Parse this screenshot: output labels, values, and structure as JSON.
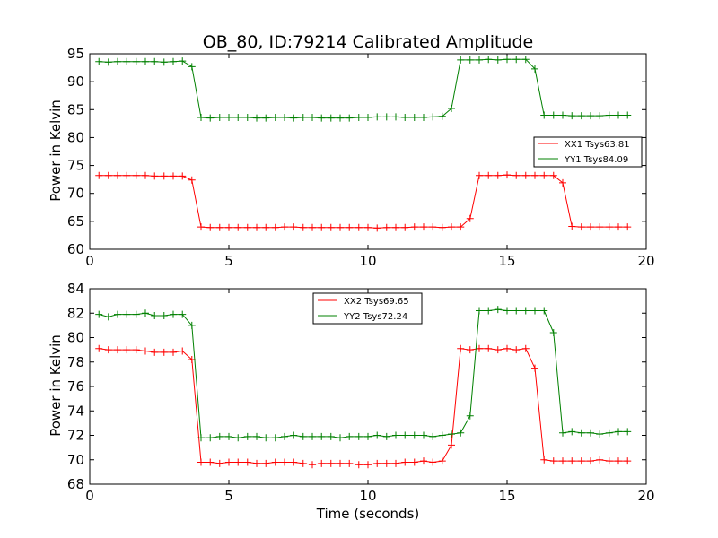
{
  "chart_data": [
    {
      "type": "line",
      "title": "OB_80, ID:79214 Calibrated Amplitude",
      "ylabel": "Power in Kelvin",
      "xlabel": "",
      "xlim": [
        0,
        20
      ],
      "ylim": [
        60,
        95
      ],
      "xticks": [
        0,
        5,
        10,
        15,
        20
      ],
      "yticks": [
        60,
        65,
        70,
        75,
        80,
        85,
        90,
        95
      ],
      "xtick_labels": [
        "0",
        "5",
        "10",
        "15",
        "20"
      ],
      "ytick_labels": [
        "60",
        "65",
        "70",
        "75",
        "80",
        "85",
        "90",
        "95"
      ],
      "grid": false,
      "legend_position": "center-right",
      "x": [
        0.33,
        0.67,
        1.0,
        1.33,
        1.67,
        2.0,
        2.33,
        2.67,
        3.0,
        3.33,
        3.67,
        4.0,
        4.33,
        4.67,
        5.0,
        5.33,
        5.67,
        6.0,
        6.33,
        6.67,
        7.0,
        7.33,
        7.67,
        8.0,
        8.33,
        8.67,
        9.0,
        9.33,
        9.67,
        10.0,
        10.33,
        10.67,
        11.0,
        11.33,
        11.67,
        12.0,
        12.33,
        12.67,
        13.0,
        13.33,
        13.67,
        14.0,
        14.33,
        14.67,
        15.0,
        15.33,
        15.67,
        16.0,
        16.33,
        16.67,
        17.0,
        17.33,
        17.67,
        18.0,
        18.33,
        18.67,
        19.0,
        19.33
      ],
      "series": [
        {
          "name": "XX1 Tsys63.81",
          "color": "#ff0000",
          "values": [
            73.2,
            73.2,
            73.2,
            73.2,
            73.2,
            73.2,
            73.1,
            73.1,
            73.1,
            73.1,
            72.4,
            64.0,
            63.9,
            63.9,
            63.9,
            63.9,
            63.9,
            63.9,
            63.9,
            63.9,
            64.0,
            64.0,
            63.9,
            63.9,
            63.9,
            63.9,
            63.9,
            63.9,
            63.9,
            63.9,
            63.8,
            63.9,
            63.9,
            63.9,
            64.0,
            64.0,
            64.0,
            63.9,
            64.0,
            64.0,
            65.5,
            73.2,
            73.2,
            73.2,
            73.3,
            73.2,
            73.2,
            73.2,
            73.2,
            73.2,
            71.9,
            64.1,
            64.0,
            64.0,
            64.0,
            64.0,
            64.0,
            64.0
          ]
        },
        {
          "name": "YY1 Tsys84.09",
          "color": "#008000",
          "values": [
            93.6,
            93.5,
            93.6,
            93.6,
            93.6,
            93.6,
            93.6,
            93.5,
            93.6,
            93.7,
            92.7,
            83.6,
            83.5,
            83.6,
            83.6,
            83.6,
            83.6,
            83.5,
            83.5,
            83.6,
            83.6,
            83.5,
            83.6,
            83.6,
            83.5,
            83.5,
            83.5,
            83.5,
            83.6,
            83.6,
            83.7,
            83.7,
            83.7,
            83.6,
            83.6,
            83.6,
            83.7,
            83.8,
            85.2,
            93.9,
            93.9,
            93.9,
            94.0,
            93.9,
            94.0,
            94.0,
            94.0,
            92.3,
            84.0,
            84.0,
            84.0,
            83.9,
            83.9,
            83.9,
            83.9,
            84.0,
            84.0,
            84.0
          ]
        }
      ]
    },
    {
      "type": "line",
      "title": "",
      "ylabel": "Power in Kelvin",
      "xlabel": "Time (seconds)",
      "xlim": [
        0,
        20
      ],
      "ylim": [
        68,
        84
      ],
      "xticks": [
        0,
        5,
        10,
        15,
        20
      ],
      "yticks": [
        68,
        70,
        72,
        74,
        76,
        78,
        80,
        82,
        84
      ],
      "xtick_labels": [
        "0",
        "5",
        "10",
        "15",
        "20"
      ],
      "ytick_labels": [
        "68",
        "70",
        "72",
        "74",
        "76",
        "78",
        "80",
        "82",
        "84"
      ],
      "grid": false,
      "legend_position": "upper-center",
      "x": [
        0.33,
        0.67,
        1.0,
        1.33,
        1.67,
        2.0,
        2.33,
        2.67,
        3.0,
        3.33,
        3.67,
        4.0,
        4.33,
        4.67,
        5.0,
        5.33,
        5.67,
        6.0,
        6.33,
        6.67,
        7.0,
        7.33,
        7.67,
        8.0,
        8.33,
        8.67,
        9.0,
        9.33,
        9.67,
        10.0,
        10.33,
        10.67,
        11.0,
        11.33,
        11.67,
        12.0,
        12.33,
        12.67,
        13.0,
        13.33,
        13.67,
        14.0,
        14.33,
        14.67,
        15.0,
        15.33,
        15.67,
        16.0,
        16.33,
        16.67,
        17.0,
        17.33,
        17.67,
        18.0,
        18.33,
        18.67,
        19.0,
        19.33
      ],
      "series": [
        {
          "name": "XX2 Tsys69.65",
          "color": "#ff0000",
          "values": [
            79.1,
            79.0,
            79.0,
            79.0,
            79.0,
            78.9,
            78.8,
            78.8,
            78.8,
            78.9,
            78.2,
            69.8,
            69.8,
            69.7,
            69.8,
            69.8,
            69.8,
            69.7,
            69.7,
            69.8,
            69.8,
            69.8,
            69.7,
            69.6,
            69.7,
            69.7,
            69.7,
            69.7,
            69.6,
            69.6,
            69.7,
            69.7,
            69.7,
            69.8,
            69.8,
            69.9,
            69.8,
            69.9,
            71.2,
            79.1,
            79.0,
            79.1,
            79.1,
            79.0,
            79.1,
            79.0,
            79.1,
            77.5,
            70.0,
            69.9,
            69.9,
            69.9,
            69.9,
            69.9,
            70.0,
            69.9,
            69.9,
            69.9
          ]
        },
        {
          "name": "YY2 Tsys72.24",
          "color": "#008000",
          "values": [
            81.9,
            81.7,
            81.9,
            81.9,
            81.9,
            82.0,
            81.8,
            81.8,
            81.9,
            81.9,
            81.0,
            71.8,
            71.8,
            71.9,
            71.9,
            71.8,
            71.9,
            71.9,
            71.8,
            71.8,
            71.9,
            72.0,
            71.9,
            71.9,
            71.9,
            71.9,
            71.8,
            71.9,
            71.9,
            71.9,
            72.0,
            71.9,
            72.0,
            72.0,
            72.0,
            72.0,
            71.9,
            72.0,
            72.1,
            72.2,
            73.6,
            82.2,
            82.2,
            82.3,
            82.2,
            82.2,
            82.2,
            82.2,
            82.2,
            80.4,
            72.2,
            72.3,
            72.2,
            72.2,
            72.1,
            72.2,
            72.3,
            72.3
          ]
        }
      ]
    }
  ]
}
